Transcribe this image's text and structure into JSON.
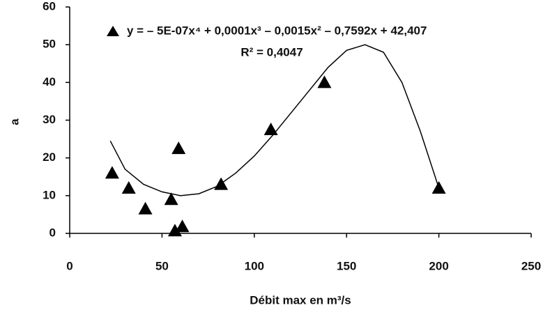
{
  "chart_data": {
    "type": "scatter",
    "x_label": "Débit max en m³/s",
    "y_label": "a",
    "annotations": [
      "y = – 5E-07x⁴ + 0,0001x³ – 0,0015x² – 0,7592x + 42,407",
      "R² = 0,4047"
    ],
    "xlim": [
      0,
      250
    ],
    "xticks": [
      0,
      50,
      100,
      150,
      200,
      250
    ],
    "ylim": [
      0,
      60
    ],
    "yticks": [
      0,
      10,
      20,
      30,
      40,
      50,
      60
    ],
    "grid": false,
    "series": [
      {
        "mode": "markers",
        "marker": "triangle",
        "color": "#000000",
        "x": [
          23,
          32,
          41,
          55,
          57,
          61,
          59,
          82,
          109,
          138,
          200
        ],
        "values": [
          16,
          12,
          6.5,
          9,
          0.7,
          1.8,
          22.5,
          13,
          27.5,
          40,
          12
        ]
      },
      {
        "mode": "line",
        "color": "#000000",
        "x": [
          22,
          30,
          40,
          50,
          60,
          70,
          80,
          90,
          100,
          110,
          120,
          130,
          140,
          150,
          160,
          170,
          180,
          190,
          200
        ],
        "values": [
          24.5,
          17,
          13,
          11,
          10,
          10.5,
          12.5,
          16,
          20.5,
          26,
          32,
          38,
          44,
          48.5,
          50,
          48,
          40,
          27,
          12
        ]
      }
    ]
  }
}
